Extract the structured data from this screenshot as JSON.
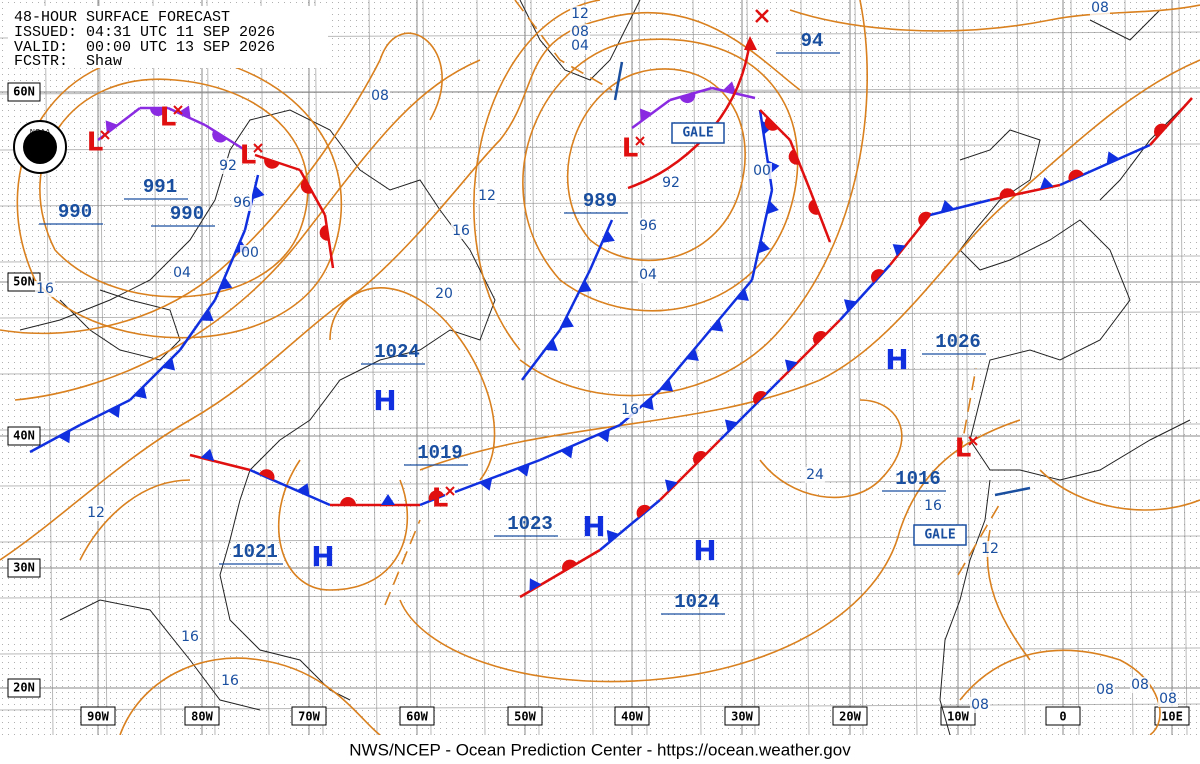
{
  "header": {
    "title": "48-HOUR SURFACE FORECAST",
    "issued": "ISSUED: 04:31 UTC 11 SEP 2026",
    "valid": "VALID:  00:00 UTC 13 SEP 2026",
    "forecaster": "FCSTR:  Shaw"
  },
  "logo": "NOAA",
  "lat_labels": [
    "60N",
    "50N",
    "40N",
    "30N",
    "20N"
  ],
  "lon_labels": [
    "90W",
    "80W",
    "70W",
    "60W",
    "50W",
    "40W",
    "30W",
    "20W",
    "10W",
    "0",
    "10E"
  ],
  "pressure_labels": [
    "991",
    "990",
    "990",
    "989",
    "94",
    "1024",
    "1019",
    "1023",
    "1021",
    "1024",
    "1026",
    "1016"
  ],
  "isobar_labels": [
    "12",
    "08",
    "04",
    "08",
    "08",
    "92",
    "96",
    "00",
    "04",
    "16",
    "12",
    "16",
    "20",
    "92",
    "96",
    "00",
    "04",
    "16",
    "24",
    "16",
    "12",
    "12",
    "16",
    "16",
    "08",
    "08",
    "08",
    "08"
  ],
  "highs": [
    "H",
    "H",
    "H",
    "H",
    "H"
  ],
  "lows": [
    "L",
    "L",
    "L",
    "L",
    "L",
    "L"
  ],
  "gale_labels": [
    "GALE",
    "GALE"
  ],
  "footer": "NWS/NCEP - Ocean Prediction Center - https://ocean.weather.gov"
}
